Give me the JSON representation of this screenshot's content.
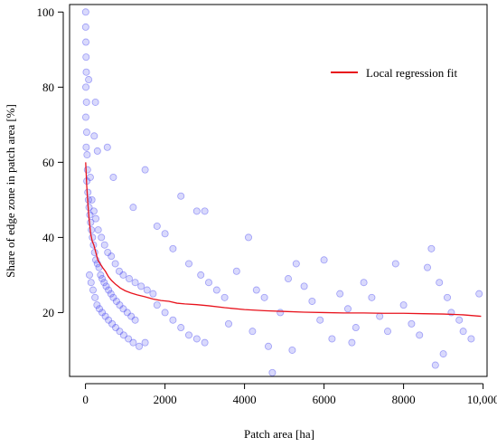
{
  "chart_data": {
    "type": "scatter",
    "title": "",
    "xlabel": "Patch area [ha]",
    "ylabel": "Share of edge zone in patch area [%]",
    "xlim": [
      -400,
      10100
    ],
    "ylim": [
      3,
      102
    ],
    "xticks": [
      0,
      2000,
      4000,
      6000,
      8000,
      10000
    ],
    "xtick_labels": [
      "0",
      "2000",
      "4000",
      "6000",
      "8000",
      "10,000"
    ],
    "yticks": [
      20,
      40,
      60,
      80,
      100
    ],
    "ytick_labels": [
      "20",
      "40",
      "60",
      "80",
      "100"
    ],
    "grid": false,
    "legend": {
      "position": "top-right",
      "entries": [
        {
          "label": "Local regression fit",
          "color": "#e8121c"
        }
      ]
    },
    "point_color": "#4040f0",
    "fit_color": "#e8121c",
    "series": [
      {
        "name": "Local regression fit",
        "kind": "line",
        "points": [
          [
            5,
            60
          ],
          [
            30,
            54
          ],
          [
            60,
            49
          ],
          [
            90,
            45
          ],
          [
            130,
            41
          ],
          [
            170,
            39
          ],
          [
            210,
            38
          ],
          [
            260,
            36
          ],
          [
            310,
            34
          ],
          [
            370,
            33
          ],
          [
            430,
            32
          ],
          [
            500,
            31
          ],
          [
            580,
            29.5
          ],
          [
            660,
            28.5
          ],
          [
            760,
            27.5
          ],
          [
            880,
            26.5
          ],
          [
            1000,
            25.8
          ],
          [
            1150,
            25.2
          ],
          [
            1300,
            24.7
          ],
          [
            1500,
            24.2
          ],
          [
            1700,
            23.6
          ],
          [
            1900,
            23.2
          ],
          [
            2100,
            23.0
          ],
          [
            2300,
            22.5
          ],
          [
            2500,
            22.3
          ],
          [
            2800,
            22.1
          ],
          [
            3100,
            21.8
          ],
          [
            3500,
            21.3
          ],
          [
            4000,
            20.8
          ],
          [
            4500,
            20.5
          ],
          [
            5000,
            20.3
          ],
          [
            5500,
            20.1
          ],
          [
            6000,
            20.0
          ],
          [
            6500,
            19.9
          ],
          [
            7000,
            19.9
          ],
          [
            7500,
            19.8
          ],
          [
            8000,
            19.8
          ],
          [
            8500,
            19.7
          ],
          [
            9000,
            19.6
          ],
          [
            9500,
            19.4
          ],
          [
            9950,
            19.0
          ]
        ]
      },
      {
        "name": "",
        "kind": "scatter",
        "points": [
          [
            5,
            100
          ],
          [
            5,
            96
          ],
          [
            10,
            92
          ],
          [
            15,
            88
          ],
          [
            20,
            84
          ],
          [
            10,
            80
          ],
          [
            25,
            76
          ],
          [
            8,
            72
          ],
          [
            30,
            68
          ],
          [
            18,
            64
          ],
          [
            40,
            62
          ],
          [
            50,
            58
          ],
          [
            35,
            55
          ],
          [
            60,
            52
          ],
          [
            75,
            50
          ],
          [
            90,
            48
          ],
          [
            110,
            46
          ],
          [
            130,
            44
          ],
          [
            150,
            42
          ],
          [
            175,
            40
          ],
          [
            200,
            38
          ],
          [
            230,
            36
          ],
          [
            260,
            34
          ],
          [
            300,
            33
          ],
          [
            340,
            32
          ],
          [
            380,
            30
          ],
          [
            420,
            29
          ],
          [
            470,
            28
          ],
          [
            520,
            27
          ],
          [
            580,
            26
          ],
          [
            640,
            25
          ],
          [
            700,
            24
          ],
          [
            780,
            23
          ],
          [
            860,
            22
          ],
          [
            950,
            21
          ],
          [
            1050,
            20
          ],
          [
            1150,
            19
          ],
          [
            1250,
            18
          ],
          [
            120,
            56
          ],
          [
            160,
            50
          ],
          [
            210,
            47
          ],
          [
            260,
            45
          ],
          [
            320,
            42
          ],
          [
            400,
            40
          ],
          [
            480,
            38
          ],
          [
            560,
            36
          ],
          [
            650,
            35
          ],
          [
            750,
            33
          ],
          [
            850,
            31
          ],
          [
            950,
            30
          ],
          [
            1100,
            29
          ],
          [
            1250,
            28
          ],
          [
            1400,
            27
          ],
          [
            1550,
            26
          ],
          [
            1700,
            25
          ],
          [
            100,
            30
          ],
          [
            140,
            28
          ],
          [
            190,
            26
          ],
          [
            240,
            24
          ],
          [
            290,
            22
          ],
          [
            350,
            21
          ],
          [
            420,
            20
          ],
          [
            500,
            19
          ],
          [
            580,
            18
          ],
          [
            670,
            17
          ],
          [
            760,
            16
          ],
          [
            860,
            15
          ],
          [
            960,
            14
          ],
          [
            1080,
            13
          ],
          [
            1200,
            12
          ],
          [
            1350,
            11
          ],
          [
            1500,
            12
          ],
          [
            80,
            82
          ],
          [
            220,
            67
          ],
          [
            300,
            63
          ],
          [
            550,
            64
          ],
          [
            700,
            56
          ],
          [
            250,
            76
          ],
          [
            1500,
            58
          ],
          [
            1200,
            48
          ],
          [
            2400,
            51
          ],
          [
            2800,
            47
          ],
          [
            3000,
            47
          ],
          [
            1800,
            43
          ],
          [
            2000,
            41
          ],
          [
            2200,
            37
          ],
          [
            2600,
            33
          ],
          [
            2900,
            30
          ],
          [
            3100,
            28
          ],
          [
            3300,
            26
          ],
          [
            3500,
            24
          ],
          [
            1800,
            22
          ],
          [
            2000,
            20
          ],
          [
            2200,
            18
          ],
          [
            2400,
            16
          ],
          [
            2600,
            14
          ],
          [
            2800,
            13
          ],
          [
            3000,
            12
          ],
          [
            4100,
            40
          ],
          [
            4300,
            26
          ],
          [
            4500,
            24
          ],
          [
            4700,
            4
          ],
          [
            4900,
            20
          ],
          [
            5100,
            29
          ],
          [
            5300,
            33
          ],
          [
            5500,
            27
          ],
          [
            5700,
            23
          ],
          [
            5900,
            18
          ],
          [
            6000,
            34
          ],
          [
            6200,
            13
          ],
          [
            6400,
            25
          ],
          [
            6600,
            21
          ],
          [
            6800,
            16
          ],
          [
            7000,
            28
          ],
          [
            7200,
            24
          ],
          [
            7400,
            19
          ],
          [
            7600,
            15
          ],
          [
            7800,
            33
          ],
          [
            8000,
            22
          ],
          [
            8200,
            17
          ],
          [
            8400,
            14
          ],
          [
            8600,
            32
          ],
          [
            8700,
            37
          ],
          [
            8800,
            6
          ],
          [
            8900,
            28
          ],
          [
            9000,
            9
          ],
          [
            9100,
            24
          ],
          [
            9200,
            20
          ],
          [
            9400,
            18
          ],
          [
            9500,
            15
          ],
          [
            9700,
            13
          ],
          [
            9900,
            25
          ],
          [
            3800,
            31
          ],
          [
            3600,
            17
          ],
          [
            4200,
            15
          ],
          [
            4600,
            11
          ],
          [
            5200,
            10
          ],
          [
            6700,
            12
          ]
        ]
      }
    ]
  }
}
